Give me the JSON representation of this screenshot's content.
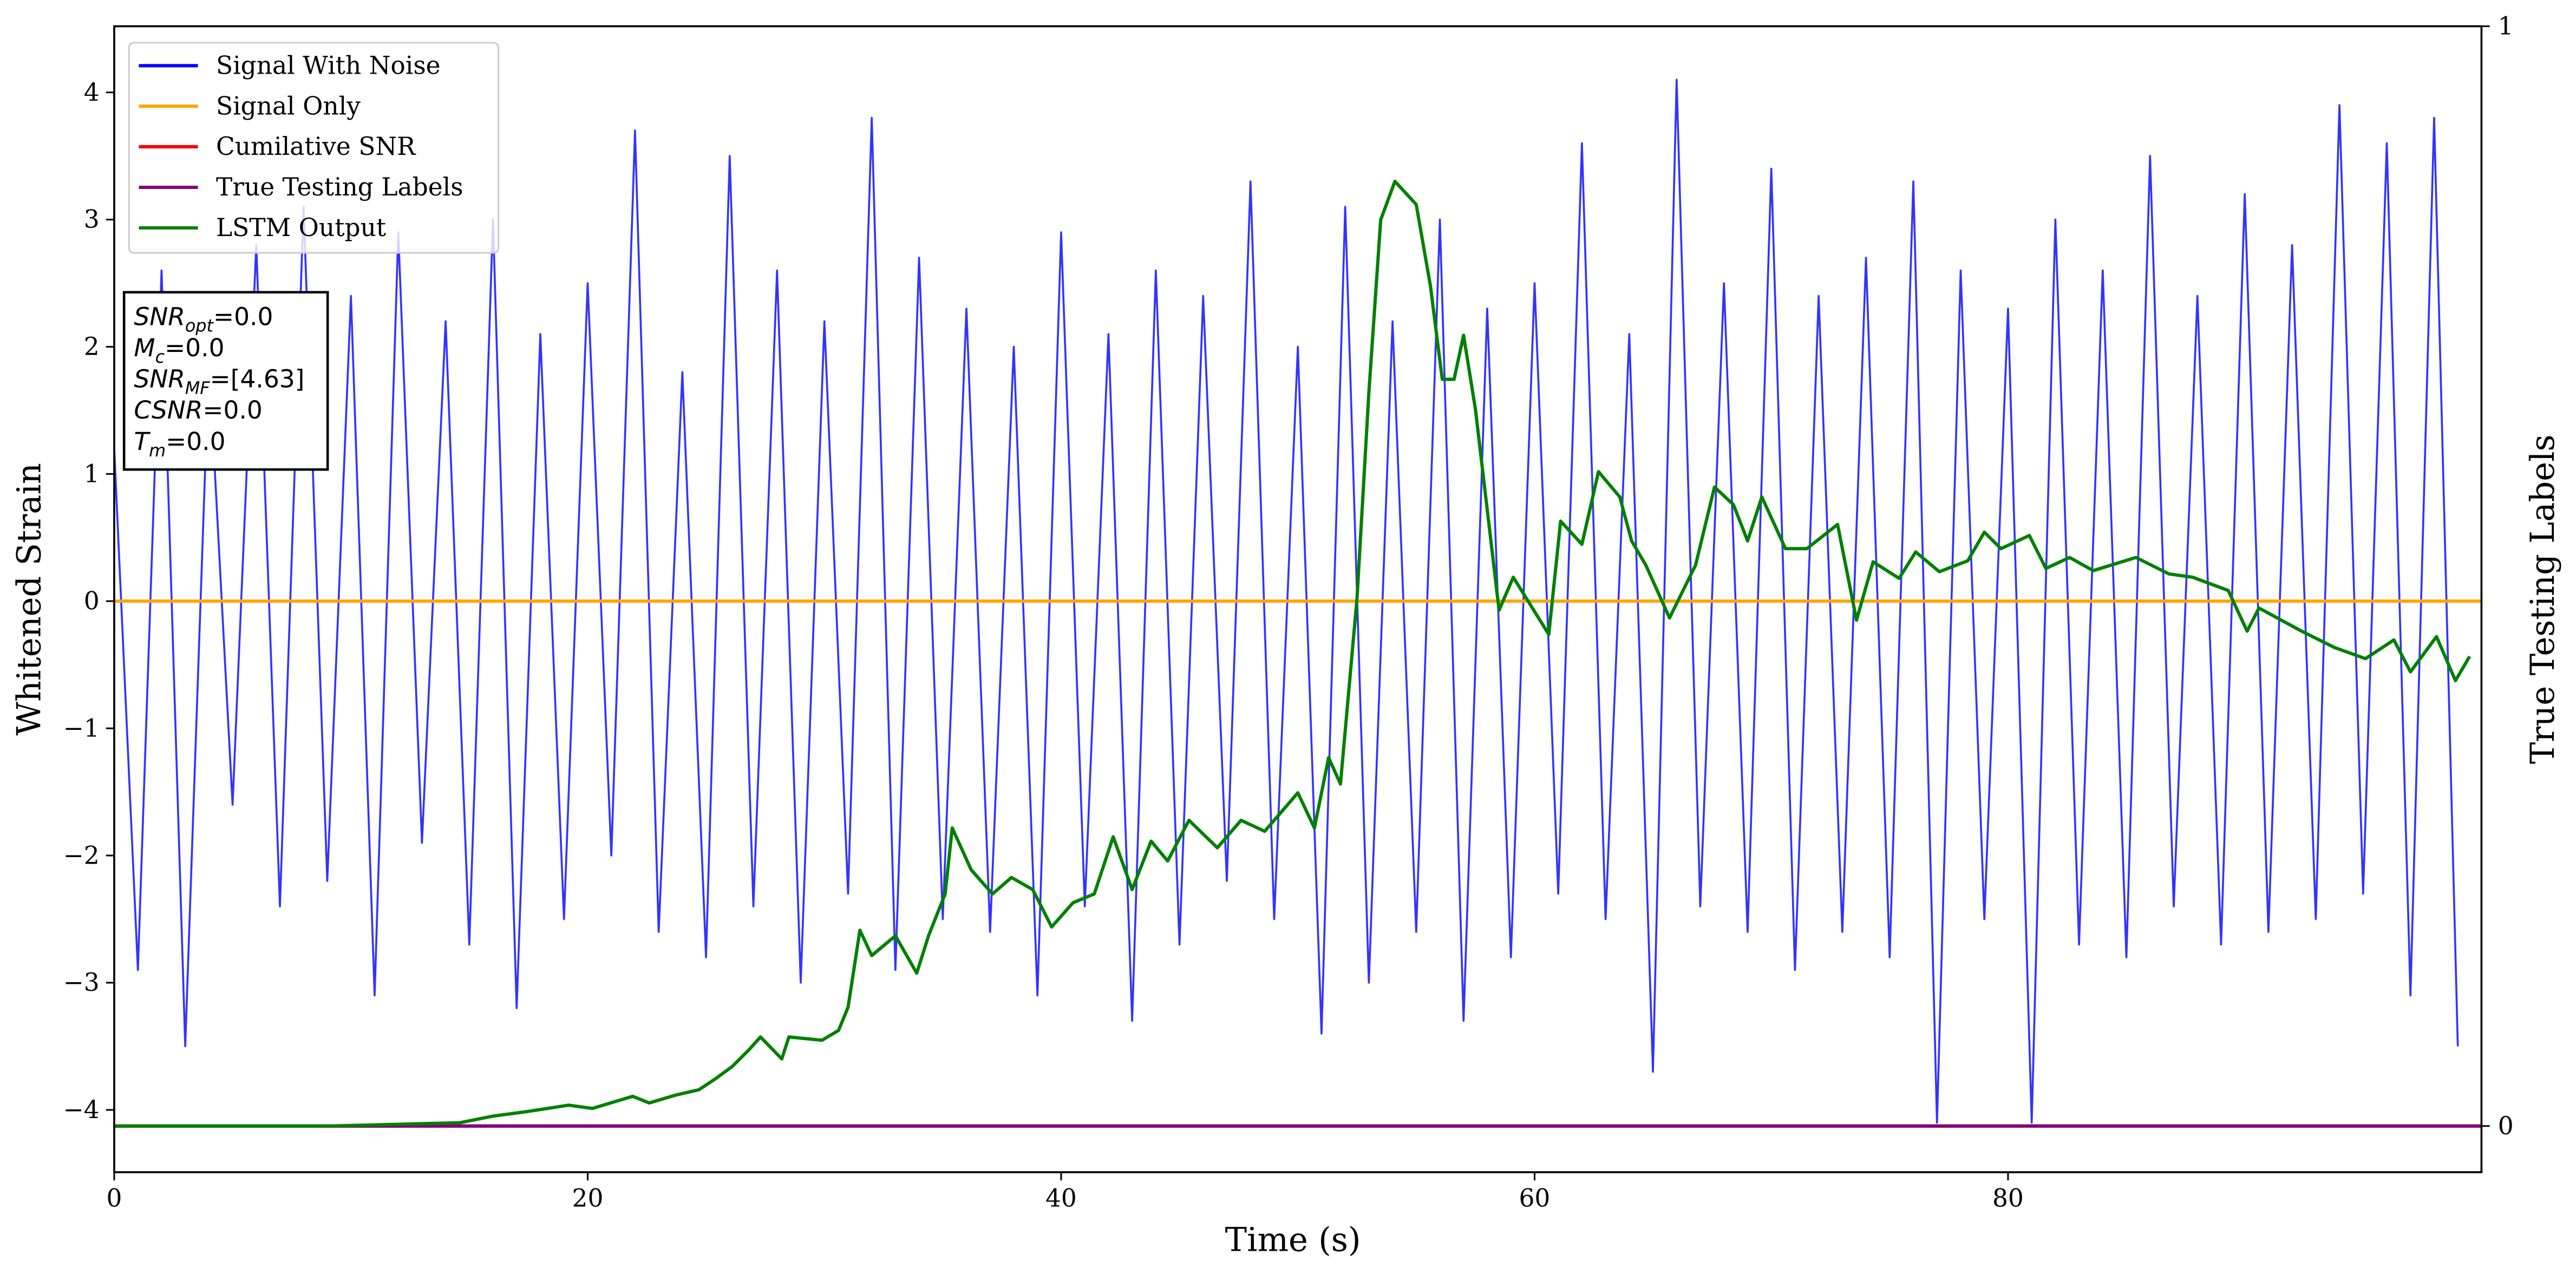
{
  "chart_data": {
    "type": "line",
    "xlabel": "Time (s)",
    "ylabel": "Whitened Strain",
    "y2label": "True Testing Labels",
    "xlim": [
      0,
      100
    ],
    "xticks": [
      0,
      20,
      40,
      60,
      80
    ],
    "ylim": [
      -4.49,
      4.52
    ],
    "yticks": [
      {
        "value": -4,
        "label": "−4"
      },
      {
        "value": -3,
        "label": "−3"
      },
      {
        "value": -2,
        "label": "−2"
      },
      {
        "value": -1,
        "label": "−1"
      },
      0,
      1,
      2,
      3,
      4
    ],
    "y2lim": [
      -0.042,
      1.0
    ],
    "y2ticks": [
      0,
      1
    ],
    "legend": "upper left",
    "series": [
      {
        "name": "Signal With Noise",
        "color": "#0000ff",
        "x": [
          0,
          1,
          2,
          3,
          4,
          5,
          6,
          7,
          8,
          9,
          10,
          11,
          12,
          13,
          14,
          15,
          16,
          17,
          18,
          19,
          20,
          21,
          22,
          23,
          24,
          25,
          26,
          27,
          28,
          29,
          30,
          31,
          32,
          33,
          34,
          35,
          36,
          37,
          38,
          39,
          40,
          41,
          42,
          43,
          44,
          45,
          46,
          47,
          48,
          49,
          50,
          51,
          52,
          53,
          54,
          55,
          56,
          57,
          58,
          59,
          60,
          61,
          62,
          63,
          64,
          65,
          66,
          67,
          68,
          69,
          70,
          71,
          72,
          73,
          74,
          75,
          76,
          77,
          78,
          79,
          80,
          81,
          82,
          83,
          84,
          85,
          86,
          87,
          88,
          89,
          90,
          91,
          92,
          93,
          94,
          95,
          96,
          97,
          98,
          99
        ],
        "values": [
          1.2,
          -2.9,
          2.6,
          -3.5,
          1.9,
          -1.6,
          2.8,
          -2.4,
          3.1,
          -2.2,
          2.4,
          -3.1,
          2.9,
          -1.9,
          2.2,
          -2.7,
          3.0,
          -3.2,
          2.1,
          -2.5,
          2.5,
          -2.0,
          3.7,
          -2.6,
          1.8,
          -2.8,
          3.5,
          -2.4,
          2.6,
          -3.0,
          2.2,
          -2.3,
          3.8,
          -2.9,
          2.7,
          -2.5,
          2.3,
          -2.6,
          2.0,
          -3.1,
          2.9,
          -2.4,
          2.1,
          -3.3,
          2.6,
          -2.7,
          2.4,
          -2.2,
          3.3,
          -2.5,
          2.0,
          -3.4,
          3.1,
          -3.0,
          2.2,
          -2.6,
          3.0,
          -3.3,
          2.3,
          -2.8,
          2.5,
          -2.3,
          3.6,
          -2.5,
          2.1,
          -3.7,
          4.1,
          -2.4,
          2.5,
          -2.6,
          3.4,
          -2.9,
          2.4,
          -2.6,
          2.7,
          -2.8,
          3.3,
          -4.1,
          2.6,
          -2.5,
          2.3,
          -4.1,
          3.0,
          -2.7,
          2.6,
          -2.8,
          3.5,
          -2.4,
          2.4,
          -2.7,
          3.2,
          -2.6,
          2.8,
          -2.5,
          3.9,
          -2.3,
          3.6,
          -3.1,
          3.8,
          -3.5
        ]
      },
      {
        "name": "Signal Only",
        "color": "#ffa500",
        "x": [
          0,
          100
        ],
        "values": [
          0,
          0
        ]
      },
      {
        "name": "Cumilative SNR",
        "color": "#ff0000",
        "axis": "y2",
        "x": [
          0,
          100
        ],
        "values": [
          0,
          0
        ]
      },
      {
        "name": "True Testing Labels",
        "color": "#800080",
        "axis": "y2",
        "x": [
          0,
          100
        ],
        "values": [
          0,
          0
        ]
      },
      {
        "name": "LSTM Output",
        "color": "#008000",
        "axis": "y2",
        "x": [
          0,
          9.1,
          14.6,
          16.0,
          17.4,
          19.2,
          20.2,
          21.9,
          22.6,
          23.7,
          24.7,
          25.4,
          26.1,
          26.8,
          27.3,
          28.2,
          28.5,
          29.9,
          30.6,
          31.0,
          31.5,
          32.0,
          33.0,
          33.9,
          34.4,
          35.1,
          35.4,
          36.2,
          37.1,
          37.9,
          38.8,
          39.6,
          40.5,
          41.4,
          42.2,
          43.0,
          43.8,
          44.5,
          45.4,
          46.6,
          47.6,
          48.6,
          50.0,
          50.7,
          51.3,
          51.8,
          52.5,
          53.0,
          53.5,
          54.1,
          55.0,
          55.6,
          56.1,
          56.6,
          57.0,
          57.5,
          58.5,
          59.1,
          60.6,
          61.1,
          62.0,
          62.7,
          63.6,
          64.1,
          64.7,
          65.7,
          66.8,
          67.6,
          68.4,
          69.0,
          69.6,
          70.6,
          71.5,
          72.8,
          73.6,
          74.3,
          75.4,
          76.1,
          77.1,
          78.3,
          79.0,
          79.7,
          80.9,
          81.6,
          82.6,
          83.6,
          85.4,
          86.8,
          87.8,
          89.3,
          90.1,
          90.6,
          92.4,
          93.8,
          95.1,
          96.3,
          97.0,
          98.1,
          98.9,
          99.5
        ],
        "values": [
          0,
          0,
          0.003,
          0.009,
          0.013,
          0.019,
          0.016,
          0.027,
          0.021,
          0.028,
          0.033,
          0.043,
          0.054,
          0.069,
          0.081,
          0.061,
          0.081,
          0.078,
          0.087,
          0.108,
          0.178,
          0.155,
          0.173,
          0.139,
          0.173,
          0.211,
          0.271,
          0.233,
          0.211,
          0.226,
          0.215,
          0.181,
          0.203,
          0.211,
          0.263,
          0.215,
          0.259,
          0.241,
          0.278,
          0.253,
          0.278,
          0.268,
          0.303,
          0.271,
          0.335,
          0.311,
          0.48,
          0.667,
          0.824,
          0.859,
          0.838,
          0.764,
          0.679,
          0.679,
          0.719,
          0.652,
          0.469,
          0.499,
          0.447,
          0.55,
          0.529,
          0.595,
          0.572,
          0.532,
          0.51,
          0.462,
          0.51,
          0.581,
          0.565,
          0.532,
          0.572,
          0.525,
          0.525,
          0.547,
          0.46,
          0.513,
          0.498,
          0.522,
          0.504,
          0.514,
          0.54,
          0.525,
          0.537,
          0.507,
          0.517,
          0.505,
          0.517,
          0.502,
          0.499,
          0.487,
          0.45,
          0.471,
          0.45,
          0.435,
          0.425,
          0.442,
          0.413,
          0.445,
          0.405,
          0.427
        ]
      }
    ],
    "annotation": [
      {
        "text": "SNR",
        "sub": "opt",
        "rest": "=0.0"
      },
      {
        "text": "M",
        "sub": "c",
        "rest": "=0.0"
      },
      {
        "text": "SNR",
        "sub": "MF",
        "rest": "=[4.63]"
      },
      {
        "text": "CSNR",
        "rest": "=0.0"
      },
      {
        "text": "T",
        "sub": "m",
        "rest": "=0.0"
      }
    ]
  }
}
